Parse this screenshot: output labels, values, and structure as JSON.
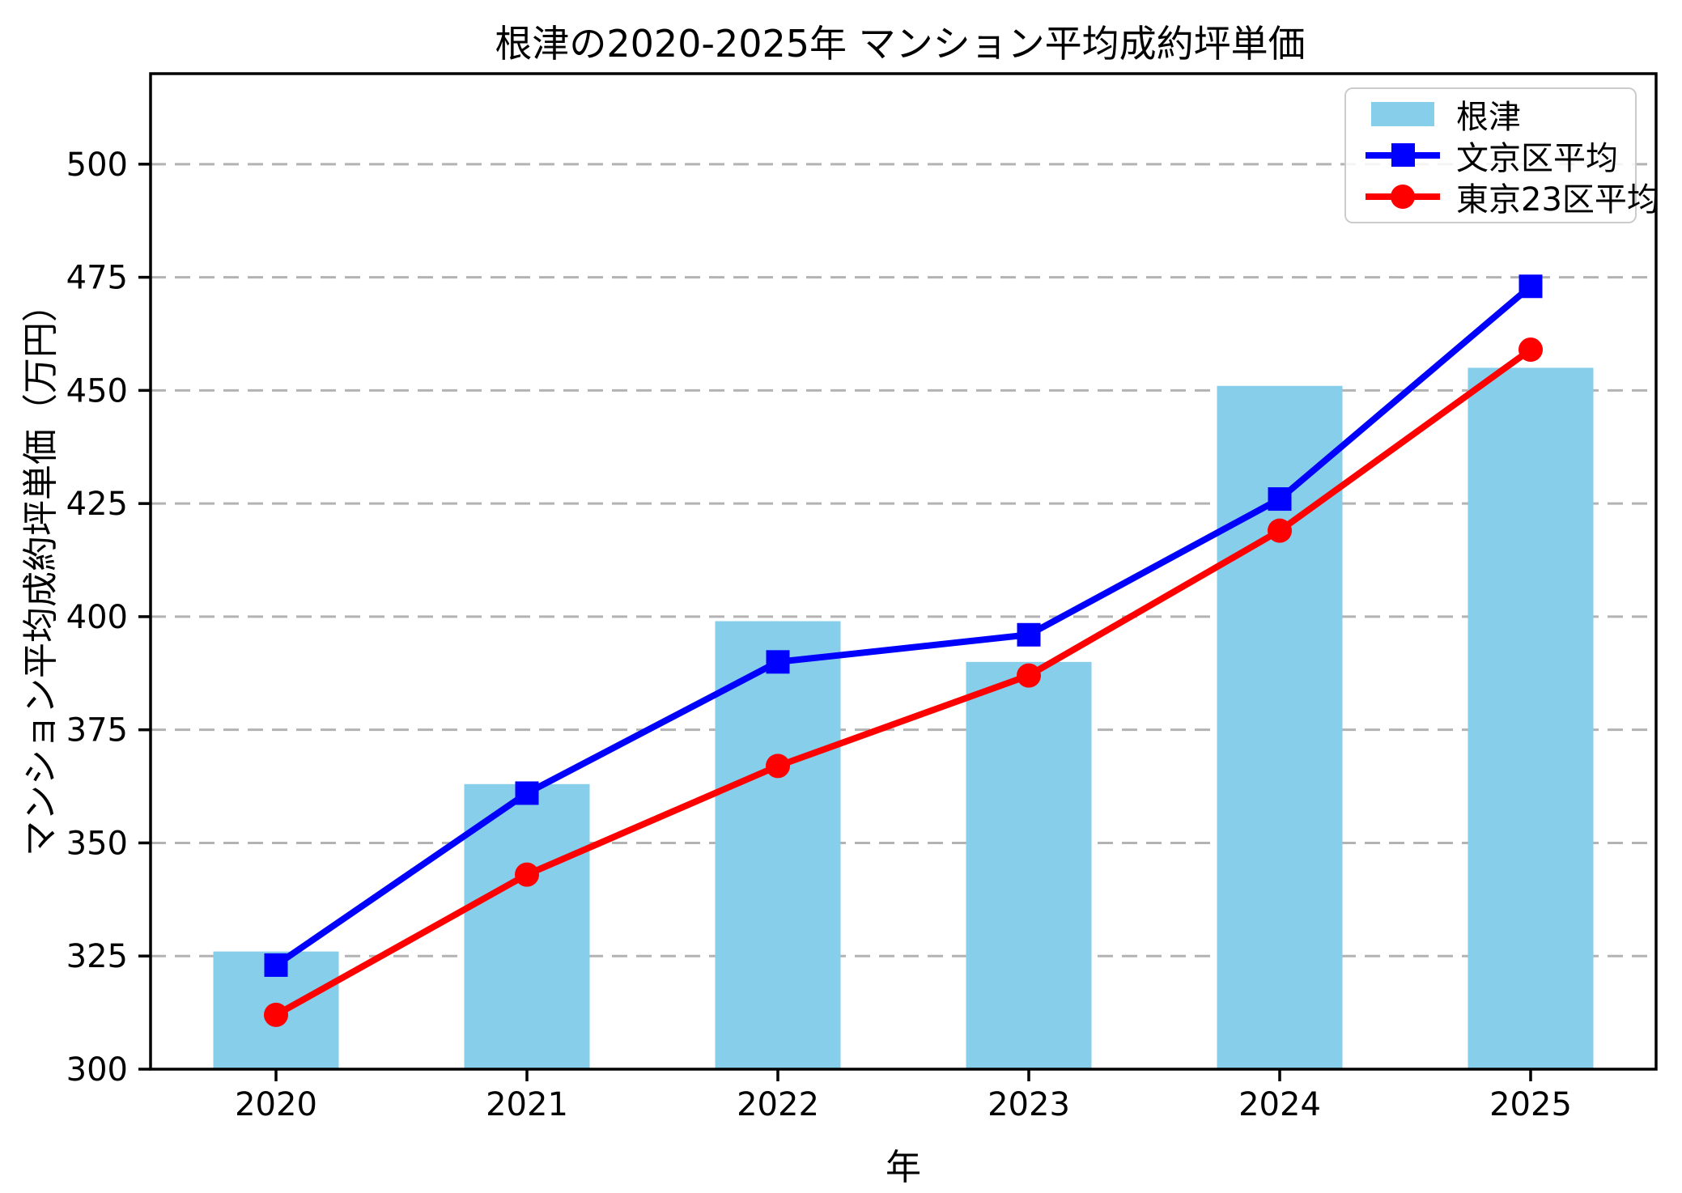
{
  "chart_data": {
    "type": "bar",
    "title": "根津の2020-2025年 マンション平均成約坪単価",
    "xlabel": "年",
    "ylabel": "マンション平均成約坪単価（万円）",
    "categories": [
      "2020",
      "2021",
      "2022",
      "2023",
      "2024",
      "2025"
    ],
    "series": [
      {
        "name": "根津",
        "type": "bar",
        "color": "#87CEEB",
        "values": [
          326,
          363,
          399,
          390,
          451,
          455
        ]
      },
      {
        "name": "文京区平均",
        "type": "line",
        "marker": "square",
        "color": "#0000FF",
        "values": [
          323,
          361,
          390,
          396,
          426,
          473
        ]
      },
      {
        "name": "東京23区平均",
        "type": "line",
        "marker": "circle",
        "color": "#FF0000",
        "values": [
          312,
          343,
          367,
          387,
          419,
          459
        ]
      }
    ],
    "ylim": [
      300,
      520
    ],
    "yticks": [
      300,
      325,
      350,
      375,
      400,
      425,
      450,
      475,
      500
    ],
    "grid": {
      "axis": "y",
      "style": "dashed",
      "color": "#b3b3b3"
    },
    "legend": {
      "position": "upper-right"
    },
    "axis_color": "#000000",
    "background": "#ffffff"
  }
}
